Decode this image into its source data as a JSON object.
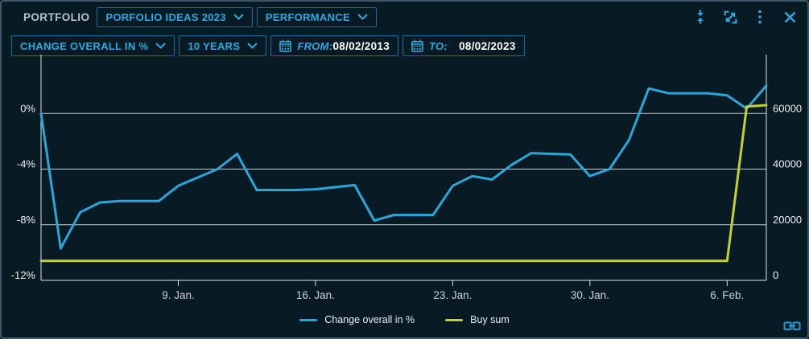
{
  "window": {
    "title": "PORTFOLIO",
    "portfolio_dropdown": "PORFOLIO IDEAS 2023",
    "view_dropdown": "PERFORMANCE"
  },
  "toolbar": {
    "metric_dropdown": "CHANGE OVERALL IN %",
    "period_dropdown": "10 YEARS",
    "from_label": "FROM:",
    "from_value": "08/02/2013",
    "to_label": "TO:",
    "to_value": "08/02/2023"
  },
  "colors": {
    "accent": "#2baae1",
    "change_line": "#2aa7d8",
    "buy_sum_line": "#c5d22d",
    "gridline": "#e9eef1",
    "background": "#081a23"
  },
  "chart_data": {
    "type": "line",
    "title": "",
    "grid": true,
    "legend_position": "bottom",
    "x": [
      "Jan 2",
      "Jan 3",
      "Jan 4",
      "Jan 5",
      "Jan 6",
      "Jan 7",
      "Jan 8",
      "Jan 9",
      "Jan 10",
      "Jan 11",
      "Jan 12",
      "Jan 13",
      "Jan 14",
      "Jan 15",
      "Jan 16",
      "Jan 17",
      "Jan 18",
      "Jan 19",
      "Jan 20",
      "Jan 21",
      "Jan 22",
      "Jan 23",
      "Jan 24",
      "Jan 25",
      "Jan 26",
      "Jan 27",
      "Jan 28",
      "Jan 29",
      "Jan 30",
      "Jan 31",
      "Feb 1",
      "Feb 2",
      "Feb 3",
      "Feb 4",
      "Feb 5",
      "Feb 6",
      "Feb 7",
      "Feb 8"
    ],
    "x_ticks": [
      {
        "label": "9. Jan.",
        "index": 7
      },
      {
        "label": "16. Jan.",
        "index": 14
      },
      {
        "label": "23. Jan.",
        "index": 21
      },
      {
        "label": "30. Jan.",
        "index": 28
      },
      {
        "label": "6. Feb.",
        "index": 35
      }
    ],
    "left_axis": {
      "label": "Change overall in %",
      "range": [
        -12,
        4
      ],
      "ticks": [
        {
          "label": "0%",
          "value": 0
        },
        {
          "label": "-4%",
          "value": -4
        },
        {
          "label": "-8%",
          "value": -8
        },
        {
          "label": "-12%",
          "value": -12
        }
      ],
      "gridlines": [
        0,
        -4,
        -8
      ]
    },
    "right_axis": {
      "label": "Buy sum",
      "range": [
        0,
        80000
      ],
      "ticks": [
        {
          "label": "60000",
          "value": 60000
        },
        {
          "label": "40000",
          "value": 40000
        },
        {
          "label": "20000",
          "value": 20000
        },
        {
          "label": "0",
          "value": 0
        }
      ]
    },
    "series": [
      {
        "name": "Change overall in %",
        "axis": "left",
        "color": "#2aa7d8",
        "values": [
          0,
          -9.7,
          -7.1,
          -6.4,
          -6.3,
          -6.3,
          -6.3,
          -5.2,
          -4.6,
          -4.0,
          -2.9,
          -5.5,
          -5.5,
          -5.5,
          -5.45,
          -5.3,
          -5.15,
          -7.7,
          -7.3,
          -7.3,
          -7.3,
          -5.2,
          -4.5,
          -4.75,
          -3.7,
          -2.85,
          -2.9,
          -2.95,
          -4.5,
          -4.0,
          -1.9,
          1.8,
          1.45,
          1.45,
          1.45,
          1.3,
          0.35,
          2.0
        ]
      },
      {
        "name": "Buy sum",
        "axis": "right",
        "color": "#c5d22d",
        "values": [
          7000,
          7000,
          7000,
          7000,
          7000,
          7000,
          7000,
          7000,
          7000,
          7000,
          7000,
          7000,
          7000,
          7000,
          7000,
          7000,
          7000,
          7000,
          7000,
          7000,
          7000,
          7000,
          7000,
          7000,
          7000,
          7000,
          7000,
          7000,
          7000,
          7000,
          7000,
          7000,
          7000,
          7000,
          7000,
          7000,
          62500,
          63000
        ]
      }
    ]
  }
}
